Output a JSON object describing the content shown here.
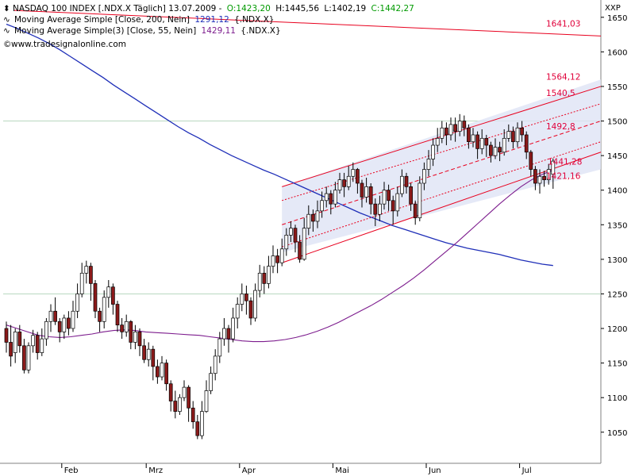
{
  "header": {
    "symbol_line_label": "NASDAQ 100 INDEX [.NDX.X  Täglich] 13.07.2009 -",
    "open": "O:1423,20",
    "high": "H:1445,56",
    "low": "L:1402,19",
    "close": "C:1442,27",
    "sma200_label": "Moving Average Simple [Close, 200, Nein]",
    "sma200_value": "1291,12",
    "sma200_symbol": "{.NDX.X}",
    "sma55_label": "Moving Average Simple(3) [Close, 55, Nein]",
    "sma55_value": "1429,11",
    "sma55_symbol": "{.NDX.X}",
    "watermark": "www.tradesignalonline.com",
    "currency": "XXP"
  },
  "colors": {
    "up_candle": "#ffffff",
    "down_candle": "#8b1a1a",
    "sma200": "#1f2fb8",
    "sma55": "#7d1d8e",
    "channel": "#e8001e",
    "channel_fill": "#dfe3f5",
    "header_green": "#009a00",
    "header_red": "#d40000"
  },
  "chart_data": {
    "type": "candlestick",
    "title": "NASDAQ 100 INDEX [.NDX.X  Täglich] 13.07.2009",
    "x_labels": [
      "Feb",
      "Mrz",
      "Apr",
      "Mai",
      "Jun",
      "Jul"
    ],
    "ylim": [
      1005,
      1675
    ],
    "y_ticks": [
      1050,
      1100,
      1150,
      1200,
      1250,
      1300,
      1350,
      1400,
      1450,
      1500,
      1550,
      1600,
      1650
    ],
    "horizontal_lines": [
      1250,
      1500
    ],
    "levels": [
      "1641,03",
      "1564,12",
      "1540,5",
      "1492,8",
      "1441,28",
      "1421,16"
    ],
    "candles": [
      [
        1200,
        1180,
        1210,
        1165
      ],
      [
        1180,
        1160,
        1205,
        1145
      ],
      [
        1165,
        1195,
        1200,
        1150
      ],
      [
        1195,
        1175,
        1205,
        1165
      ],
      [
        1175,
        1140,
        1185,
        1135
      ],
      [
        1140,
        1175,
        1180,
        1135
      ],
      [
        1175,
        1190,
        1198,
        1165
      ],
      [
        1190,
        1165,
        1195,
        1155
      ],
      [
        1165,
        1185,
        1200,
        1160
      ],
      [
        1185,
        1210,
        1215,
        1175
      ],
      [
        1210,
        1225,
        1235,
        1195
      ],
      [
        1225,
        1210,
        1245,
        1205
      ],
      [
        1210,
        1195,
        1215,
        1180
      ],
      [
        1195,
        1215,
        1220,
        1185
      ],
      [
        1215,
        1200,
        1225,
        1190
      ],
      [
        1200,
        1225,
        1240,
        1195
      ],
      [
        1225,
        1250,
        1265,
        1215
      ],
      [
        1250,
        1280,
        1295,
        1245
      ],
      [
        1280,
        1290,
        1298,
        1265
      ],
      [
        1290,
        1265,
        1295,
        1240
      ],
      [
        1265,
        1225,
        1270,
        1215
      ],
      [
        1225,
        1210,
        1230,
        1195
      ],
      [
        1210,
        1245,
        1255,
        1200
      ],
      [
        1245,
        1260,
        1270,
        1230
      ],
      [
        1260,
        1235,
        1265,
        1220
      ],
      [
        1235,
        1205,
        1240,
        1195
      ],
      [
        1205,
        1195,
        1215,
        1185
      ],
      [
        1195,
        1210,
        1220,
        1188
      ],
      [
        1210,
        1180,
        1212,
        1170
      ],
      [
        1180,
        1195,
        1205,
        1170
      ],
      [
        1195,
        1175,
        1200,
        1160
      ],
      [
        1175,
        1155,
        1185,
        1150
      ],
      [
        1155,
        1170,
        1180,
        1145
      ],
      [
        1170,
        1145,
        1175,
        1125
      ],
      [
        1145,
        1130,
        1155,
        1120
      ],
      [
        1130,
        1150,
        1160,
        1125
      ],
      [
        1150,
        1120,
        1155,
        1110
      ],
      [
        1120,
        1095,
        1125,
        1080
      ],
      [
        1095,
        1080,
        1110,
        1070
      ],
      [
        1080,
        1100,
        1105,
        1075
      ],
      [
        1100,
        1115,
        1125,
        1095
      ],
      [
        1115,
        1085,
        1118,
        1065
      ],
      [
        1085,
        1065,
        1095,
        1055
      ],
      [
        1065,
        1045,
        1075,
        1040
      ],
      [
        1045,
        1080,
        1095,
        1040
      ],
      [
        1080,
        1110,
        1125,
        1078
      ],
      [
        1110,
        1135,
        1145,
        1105
      ],
      [
        1135,
        1160,
        1170,
        1125
      ],
      [
        1160,
        1185,
        1195,
        1150
      ],
      [
        1185,
        1200,
        1215,
        1175
      ],
      [
        1200,
        1185,
        1205,
        1165
      ],
      [
        1185,
        1215,
        1230,
        1180
      ],
      [
        1215,
        1235,
        1245,
        1200
      ],
      [
        1235,
        1250,
        1265,
        1225
      ],
      [
        1250,
        1240,
        1262,
        1220
      ],
      [
        1240,
        1215,
        1245,
        1205
      ],
      [
        1215,
        1255,
        1265,
        1210
      ],
      [
        1255,
        1280,
        1292,
        1245
      ],
      [
        1280,
        1265,
        1290,
        1250
      ],
      [
        1265,
        1290,
        1305,
        1258
      ],
      [
        1290,
        1305,
        1320,
        1280
      ],
      [
        1305,
        1295,
        1315,
        1280
      ],
      [
        1295,
        1315,
        1330,
        1290
      ],
      [
        1315,
        1335,
        1345,
        1305
      ],
      [
        1335,
        1345,
        1355,
        1325
      ],
      [
        1345,
        1325,
        1350,
        1310
      ],
      [
        1325,
        1300,
        1335,
        1295
      ],
      [
        1300,
        1345,
        1360,
        1298
      ],
      [
        1345,
        1365,
        1378,
        1335
      ],
      [
        1365,
        1355,
        1372,
        1340
      ],
      [
        1355,
        1370,
        1385,
        1345
      ],
      [
        1370,
        1385,
        1398,
        1360
      ],
      [
        1385,
        1395,
        1405,
        1375
      ],
      [
        1395,
        1380,
        1400,
        1365
      ],
      [
        1380,
        1400,
        1412,
        1375
      ],
      [
        1400,
        1415,
        1425,
        1395
      ],
      [
        1415,
        1405,
        1425,
        1390
      ],
      [
        1405,
        1420,
        1435,
        1400
      ],
      [
        1420,
        1430,
        1440,
        1412
      ],
      [
        1430,
        1410,
        1432,
        1395
      ],
      [
        1410,
        1390,
        1415,
        1375
      ],
      [
        1390,
        1405,
        1418,
        1382
      ],
      [
        1405,
        1380,
        1410,
        1365
      ],
      [
        1380,
        1365,
        1388,
        1348
      ],
      [
        1365,
        1380,
        1392,
        1355
      ],
      [
        1380,
        1400,
        1412,
        1372
      ],
      [
        1400,
        1385,
        1408,
        1370
      ],
      [
        1385,
        1370,
        1392,
        1350
      ],
      [
        1370,
        1395,
        1405,
        1362
      ],
      [
        1395,
        1420,
        1430,
        1390
      ],
      [
        1420,
        1405,
        1425,
        1395
      ],
      [
        1405,
        1380,
        1410,
        1370
      ],
      [
        1380,
        1360,
        1385,
        1350
      ],
      [
        1360,
        1410,
        1420,
        1355
      ],
      [
        1410,
        1430,
        1440,
        1400
      ],
      [
        1430,
        1445,
        1458,
        1420
      ],
      [
        1445,
        1465,
        1475,
        1435
      ],
      [
        1465,
        1475,
        1490,
        1455
      ],
      [
        1475,
        1490,
        1500,
        1468
      ],
      [
        1490,
        1480,
        1498,
        1465
      ],
      [
        1480,
        1495,
        1505,
        1472
      ],
      [
        1495,
        1485,
        1505,
        1470
      ],
      [
        1485,
        1500,
        1510,
        1478
      ],
      [
        1500,
        1490,
        1508,
        1478
      ],
      [
        1490,
        1470,
        1495,
        1460
      ],
      [
        1470,
        1480,
        1490,
        1462
      ],
      [
        1480,
        1460,
        1485,
        1445
      ],
      [
        1460,
        1475,
        1488,
        1452
      ],
      [
        1475,
        1465,
        1480,
        1448
      ],
      [
        1465,
        1450,
        1470,
        1440
      ],
      [
        1450,
        1462,
        1475,
        1445
      ],
      [
        1462,
        1455,
        1470,
        1442
      ],
      [
        1455,
        1475,
        1488,
        1450
      ],
      [
        1475,
        1485,
        1495,
        1470
      ],
      [
        1485,
        1470,
        1492,
        1460
      ],
      [
        1470,
        1490,
        1498,
        1462
      ],
      [
        1490,
        1480,
        1500,
        1470
      ],
      [
        1480,
        1455,
        1485,
        1445
      ],
      [
        1455,
        1430,
        1458,
        1420
      ],
      [
        1430,
        1410,
        1435,
        1400
      ],
      [
        1410,
        1420,
        1430,
        1395
      ],
      [
        1420,
        1415,
        1428,
        1405
      ],
      [
        1415,
        1430,
        1438,
        1408
      ],
      [
        1423,
        1442,
        1446,
        1402
      ]
    ],
    "sma200": [
      1640,
      1634,
      1627,
      1620,
      1612,
      1603,
      1593,
      1583,
      1573,
      1563,
      1552,
      1542,
      1532,
      1522,
      1512,
      1502,
      1492,
      1483,
      1475,
      1466,
      1458,
      1450,
      1443,
      1436,
      1429,
      1423,
      1416,
      1409,
      1402,
      1395,
      1388,
      1381,
      1374,
      1367,
      1361,
      1355,
      1349,
      1344,
      1339,
      1334,
      1329,
      1324,
      1320,
      1316,
      1313,
      1310,
      1307,
      1303,
      1299,
      1296,
      1293,
      1291
    ],
    "sma55": [
      1205,
      1200,
      1195,
      1190,
      1188,
      1187,
      1188,
      1190,
      1192,
      1195,
      1197,
      1198,
      1197,
      1195,
      1194,
      1193,
      1192,
      1191,
      1190,
      1188,
      1186,
      1184,
      1182,
      1181,
      1181,
      1182,
      1184,
      1187,
      1191,
      1196,
      1202,
      1209,
      1217,
      1225,
      1233,
      1242,
      1252,
      1262,
      1273,
      1285,
      1298,
      1311,
      1324,
      1338,
      1352,
      1366,
      1380,
      1393,
      1405,
      1415,
      1423,
      1429
    ]
  }
}
